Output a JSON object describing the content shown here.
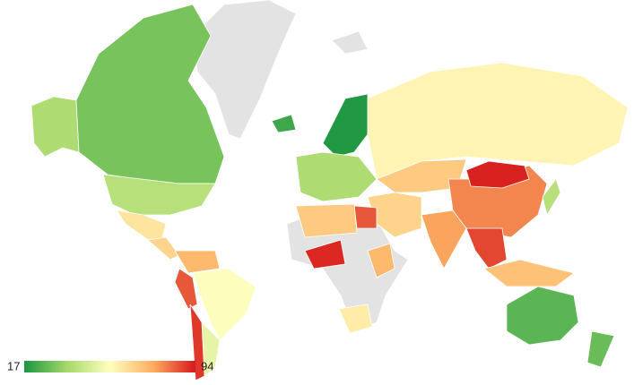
{
  "chart_data": {
    "type": "choropleth",
    "scale": {
      "min": 17,
      "max": 94,
      "colors": [
        "#1a9641",
        "#a6d96a",
        "#ffffbf",
        "#fdae61",
        "#d7191c"
      ]
    },
    "no_data_color": "#e3e3e3",
    "values": [
      38,
      30,
      40,
      62,
      66,
      72,
      86,
      55,
      50,
      90,
      18,
      22,
      38,
      58,
      68,
      66,
      86,
      76,
      80,
      93,
      88,
      70,
      26,
      28,
      40,
      92,
      68,
      60,
      72
    ]
  }
}
